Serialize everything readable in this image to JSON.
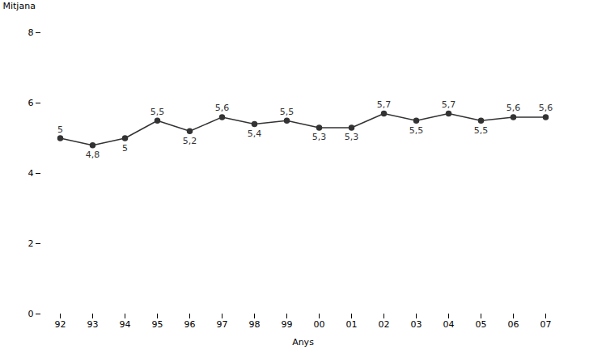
{
  "chart_data": {
    "type": "line",
    "categories": [
      "92",
      "93",
      "94",
      "95",
      "96",
      "97",
      "98",
      "99",
      "00",
      "01",
      "02",
      "03",
      "04",
      "05",
      "06",
      "07"
    ],
    "values": [
      5.0,
      4.8,
      5.0,
      5.5,
      5.2,
      5.6,
      5.4,
      5.5,
      5.3,
      5.3,
      5.7,
      5.5,
      5.7,
      5.5,
      5.6,
      5.6
    ],
    "value_labels": [
      "5",
      "4,8",
      "5",
      "5,5",
      "5,2",
      "5,6",
      "5,4",
      "5,5",
      "5,3",
      "5,3",
      "5,7",
      "5,5",
      "5,7",
      "5,5",
      "5,6",
      "5,6"
    ],
    "x_label": "Anys",
    "y_label": "Mitjana",
    "ylim": [
      0,
      8
    ],
    "yticks": [
      0,
      2,
      4,
      6,
      8
    ],
    "color": "#333333",
    "marker": "circle",
    "grid": false,
    "data_labels": true
  }
}
